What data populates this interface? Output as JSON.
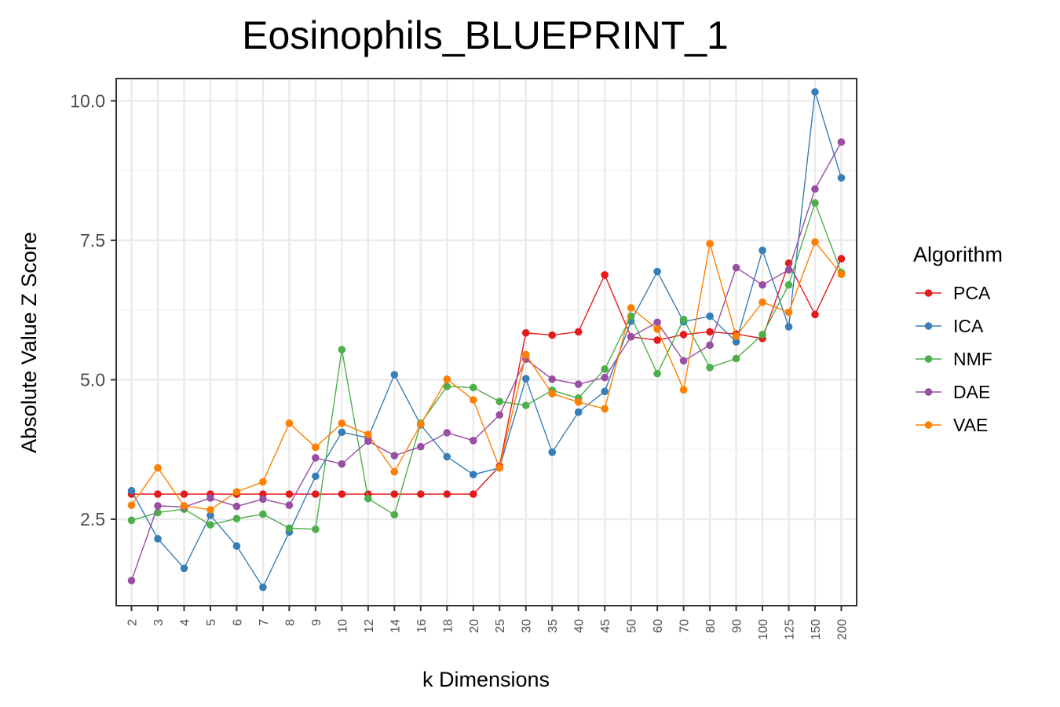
{
  "chart_data": {
    "type": "line",
    "title": "Eosinophils_BLUEPRINT_1",
    "xlabel": "k Dimensions",
    "ylabel": "Absolute Value Z Score",
    "categories": [
      "2",
      "3",
      "4",
      "5",
      "6",
      "7",
      "8",
      "9",
      "10",
      "12",
      "14",
      "16",
      "18",
      "20",
      "25",
      "30",
      "35",
      "40",
      "45",
      "50",
      "60",
      "70",
      "80",
      "90",
      "100",
      "125",
      "150",
      "200"
    ],
    "y_ticks": [
      "2.5",
      "5.0",
      "7.5",
      "10.0"
    ],
    "ylim": [
      0.95,
      10.4
    ],
    "grid": true,
    "legend_position": "right",
    "legend_title": "Algorithm",
    "series": [
      {
        "name": "PCA",
        "color": "#e41a1c",
        "values": [
          2.95,
          2.95,
          2.95,
          2.95,
          2.95,
          2.95,
          2.95,
          2.95,
          2.95,
          2.95,
          2.95,
          2.95,
          2.95,
          2.95,
          3.45,
          5.84,
          5.8,
          5.86,
          6.88,
          5.77,
          5.71,
          5.81,
          5.86,
          5.82,
          5.74,
          7.09,
          6.17,
          7.17
        ]
      },
      {
        "name": "ICA",
        "color": "#377eb8",
        "values": [
          3.01,
          2.15,
          1.62,
          2.57,
          2.02,
          1.28,
          2.27,
          3.27,
          4.06,
          3.96,
          5.09,
          4.19,
          3.62,
          3.3,
          3.42,
          5.02,
          3.7,
          4.42,
          4.79,
          6.05,
          6.94,
          6.04,
          6.14,
          5.68,
          7.32,
          5.95,
          10.16,
          8.62
        ]
      },
      {
        "name": "NMF",
        "color": "#4daf4a",
        "values": [
          2.48,
          2.62,
          2.68,
          2.4,
          2.51,
          2.59,
          2.34,
          2.32,
          5.54,
          2.87,
          2.58,
          4.22,
          4.88,
          4.86,
          4.61,
          4.54,
          4.81,
          4.67,
          5.19,
          6.14,
          5.11,
          6.08,
          5.22,
          5.38,
          5.81,
          6.7,
          8.17,
          6.92
        ]
      },
      {
        "name": "DAE",
        "color": "#984ea3",
        "values": [
          1.4,
          2.74,
          2.72,
          2.88,
          2.73,
          2.86,
          2.75,
          3.6,
          3.49,
          3.9,
          3.64,
          3.8,
          4.05,
          3.91,
          4.37,
          5.37,
          5.01,
          4.92,
          5.04,
          5.77,
          6.03,
          5.34,
          5.62,
          7.01,
          6.7,
          6.97,
          8.42,
          9.26
        ]
      },
      {
        "name": "VAE",
        "color": "#ff7f00",
        "values": [
          2.75,
          3.42,
          2.74,
          2.67,
          2.99,
          3.17,
          4.22,
          3.79,
          4.22,
          4.02,
          3.35,
          4.2,
          5.01,
          4.64,
          3.42,
          5.45,
          4.75,
          4.6,
          4.48,
          6.29,
          5.91,
          4.82,
          7.44,
          5.78,
          6.39,
          6.21,
          7.47,
          6.89
        ]
      }
    ]
  }
}
